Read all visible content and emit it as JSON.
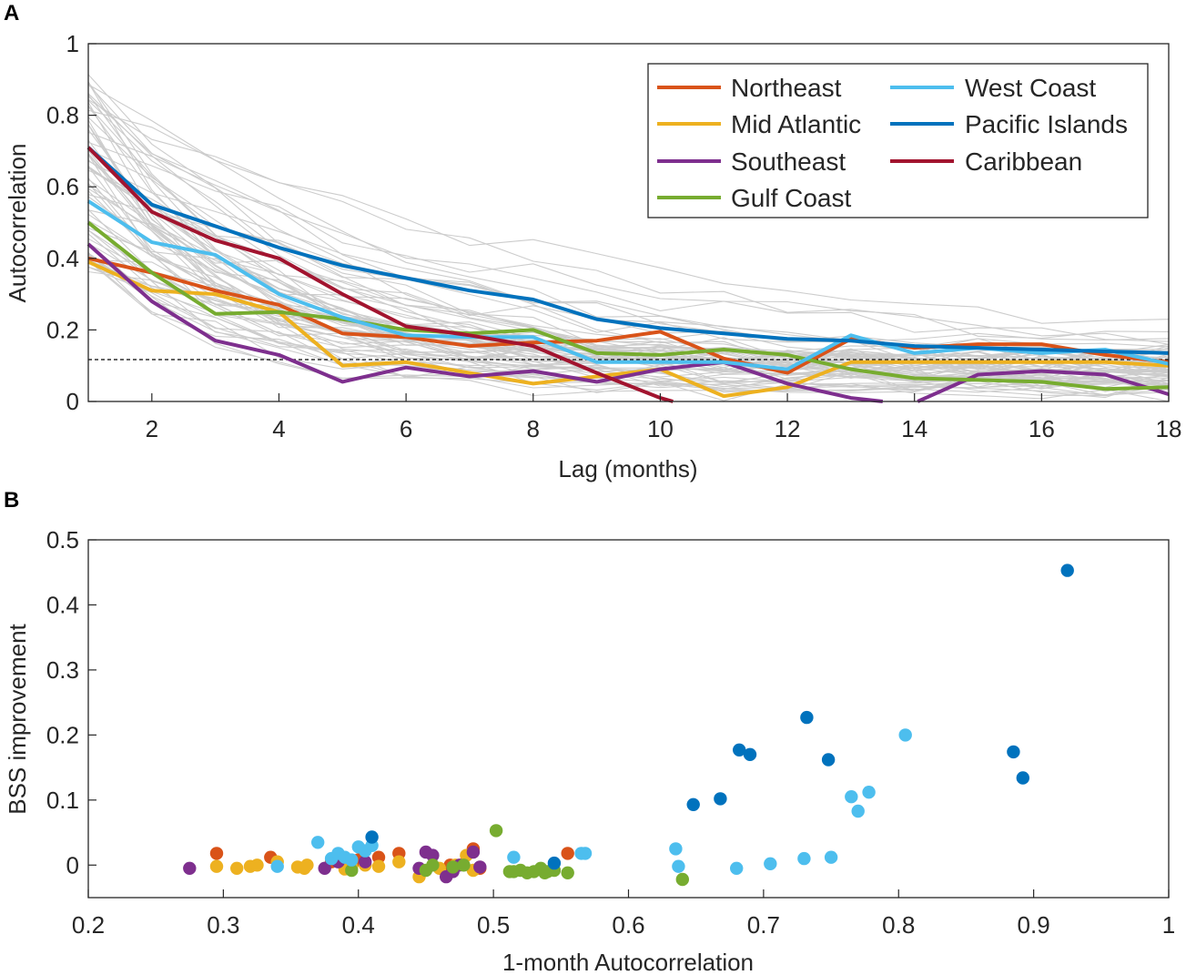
{
  "chart_data": [
    {
      "panel": "A",
      "type": "line",
      "xlabel": "Lag (months)",
      "ylabel": "Autocorrelation",
      "xlim": [
        1,
        18
      ],
      "ylim": [
        0,
        1
      ],
      "xticks": [
        2,
        4,
        6,
        8,
        10,
        12,
        14,
        16,
        18
      ],
      "yticks": [
        0,
        0.2,
        0.4,
        0.6,
        0.8,
        1
      ],
      "ytick_labels": [
        "0",
        "0.2",
        "0.4",
        "0.6",
        "0.8",
        "1"
      ],
      "significance_threshold": 0.117,
      "legend_position": "top-right",
      "background_series_color": "#cccccc",
      "series": [
        {
          "name": "Northeast",
          "color": "#d95319",
          "x": [
            1,
            2,
            3,
            4,
            5,
            6,
            7,
            8,
            9,
            10,
            11,
            12,
            13,
            14,
            15,
            16,
            17,
            18
          ],
          "y": [
            0.4,
            0.36,
            0.31,
            0.27,
            0.19,
            0.18,
            0.155,
            0.165,
            0.17,
            0.195,
            0.12,
            0.08,
            0.175,
            0.15,
            0.16,
            0.16,
            0.13,
            0.11
          ]
        },
        {
          "name": "Mid Atlantic",
          "color": "#edb120",
          "x": [
            1,
            2,
            3,
            4,
            5,
            6,
            7,
            8,
            9,
            10,
            11,
            12,
            13,
            14,
            15,
            16,
            17,
            18
          ],
          "y": [
            0.39,
            0.31,
            0.3,
            0.25,
            0.1,
            0.11,
            0.08,
            0.05,
            0.07,
            0.09,
            0.015,
            0.04,
            0.11,
            0.11,
            0.11,
            0.11,
            0.11,
            0.1
          ]
        },
        {
          "name": "Southeast",
          "color": "#7e2f8e",
          "x": [
            1,
            2,
            3,
            4,
            5,
            6,
            7,
            8,
            9,
            10,
            11,
            12,
            13,
            13.5,
            13.55,
            14,
            14.05,
            15,
            16,
            17,
            18
          ],
          "y": [
            0.44,
            0.28,
            0.17,
            0.13,
            0.055,
            0.095,
            0.07,
            0.085,
            0.055,
            0.09,
            0.11,
            0.05,
            0.01,
            0.0,
            null,
            null,
            0.0,
            0.075,
            0.085,
            0.075,
            0.02
          ]
        },
        {
          "name": "Gulf Coast",
          "color": "#77ac30",
          "x": [
            1,
            2,
            3,
            4,
            5,
            6,
            7,
            8,
            9,
            10,
            11,
            12,
            13,
            14,
            15,
            16,
            17,
            18
          ],
          "y": [
            0.5,
            0.36,
            0.245,
            0.25,
            0.23,
            0.2,
            0.19,
            0.2,
            0.135,
            0.13,
            0.145,
            0.13,
            0.09,
            0.065,
            0.06,
            0.055,
            0.035,
            0.04
          ]
        },
        {
          "name": "West Coast",
          "color": "#4dbeee",
          "x": [
            1,
            2,
            3,
            4,
            5,
            6,
            7,
            8,
            9,
            10,
            11,
            12,
            13,
            14,
            15,
            16,
            17,
            18
          ],
          "y": [
            0.56,
            0.445,
            0.41,
            0.3,
            0.235,
            0.185,
            0.18,
            0.18,
            0.11,
            0.11,
            0.11,
            0.09,
            0.185,
            0.135,
            0.15,
            0.135,
            0.145,
            0.105
          ]
        },
        {
          "name": "Pacific Islands",
          "color": "#0072bd",
          "x": [
            1,
            2,
            3,
            4,
            5,
            6,
            7,
            8,
            9,
            10,
            11,
            12,
            13,
            14,
            15,
            16,
            17,
            18
          ],
          "y": [
            0.71,
            0.55,
            0.49,
            0.43,
            0.38,
            0.345,
            0.31,
            0.285,
            0.23,
            0.205,
            0.19,
            0.175,
            0.17,
            0.155,
            0.15,
            0.145,
            0.14,
            0.135
          ]
        },
        {
          "name": "Caribbean",
          "color": "#a2142f",
          "x": [
            1,
            2,
            3,
            4,
            5,
            6,
            7,
            8,
            9,
            10,
            10.2
          ],
          "y": [
            0.71,
            0.53,
            0.45,
            0.4,
            0.3,
            0.21,
            0.185,
            0.155,
            0.08,
            0.01,
            0.0
          ]
        }
      ],
      "legend": {
        "Northeast": "Northeast",
        "Mid Atlantic": "Mid Atlantic",
        "Southeast": "Southeast",
        "Gulf Coast": "Gulf Coast",
        "West Coast": "West Coast",
        "Pacific Islands": "Pacific Islands",
        "Caribbean": "Caribbean"
      }
    },
    {
      "panel": "B",
      "type": "scatter",
      "xlabel": "1-month Autocorrelation",
      "ylabel": "BSS improvement",
      "xlim": [
        0.2,
        1.0
      ],
      "ylim": [
        -0.05,
        0.5
      ],
      "xticks": [
        0.2,
        0.3,
        0.4,
        0.5,
        0.6,
        0.7,
        0.8,
        0.9,
        1.0
      ],
      "xtick_labels": [
        "0.2",
        "0.3",
        "0.4",
        "0.5",
        "0.6",
        "0.7",
        "0.8",
        "0.9",
        "1"
      ],
      "yticks": [
        0,
        0.1,
        0.2,
        0.3,
        0.4,
        0.5
      ],
      "ytick_labels": [
        "0",
        "0.1",
        "0.2",
        "0.3",
        "0.4",
        "0.5"
      ],
      "series": [
        {
          "name": "Northeast",
          "color": "#d95319",
          "points": [
            [
              0.295,
              0.018
            ],
            [
              0.335,
              0.012
            ],
            [
              0.4,
              0.008
            ],
            [
              0.415,
              0.012
            ],
            [
              0.43,
              0.018
            ],
            [
              0.485,
              0.025
            ],
            [
              0.49,
              -0.005
            ],
            [
              0.555,
              0.018
            ],
            [
              0.38,
              0.005
            ],
            [
              0.468,
              0.0
            ]
          ]
        },
        {
          "name": "Mid Atlantic",
          "color": "#edb120",
          "points": [
            [
              0.295,
              -0.002
            ],
            [
              0.31,
              -0.005
            ],
            [
              0.32,
              -0.002
            ],
            [
              0.325,
              0.0
            ],
            [
              0.34,
              0.005
            ],
            [
              0.355,
              -0.003
            ],
            [
              0.36,
              -0.005
            ],
            [
              0.362,
              0.0
            ],
            [
              0.39,
              -0.006
            ],
            [
              0.395,
              -0.003
            ],
            [
              0.405,
              0.0
            ],
            [
              0.415,
              -0.002
            ],
            [
              0.43,
              0.005
            ],
            [
              0.445,
              -0.018
            ],
            [
              0.46,
              -0.005
            ],
            [
              0.48,
              0.015
            ],
            [
              0.485,
              -0.008
            ],
            [
              0.472,
              0.0
            ]
          ]
        },
        {
          "name": "Southeast",
          "color": "#7e2f8e",
          "points": [
            [
              0.275,
              -0.005
            ],
            [
              0.375,
              -0.005
            ],
            [
              0.385,
              0.005
            ],
            [
              0.405,
              0.005
            ],
            [
              0.445,
              -0.005
            ],
            [
              0.45,
              0.02
            ],
            [
              0.455,
              0.015
            ],
            [
              0.465,
              -0.018
            ],
            [
              0.47,
              -0.01
            ],
            [
              0.485,
              0.02
            ],
            [
              0.49,
              -0.003
            ],
            [
              0.475,
              0.0
            ]
          ]
        },
        {
          "name": "Gulf Coast",
          "color": "#77ac30",
          "points": [
            [
              0.395,
              -0.008
            ],
            [
              0.45,
              -0.008
            ],
            [
              0.455,
              0.0
            ],
            [
              0.47,
              -0.003
            ],
            [
              0.478,
              0.0
            ],
            [
              0.502,
              0.053
            ],
            [
              0.512,
              -0.01
            ],
            [
              0.515,
              -0.01
            ],
            [
              0.52,
              -0.008
            ],
            [
              0.525,
              -0.012
            ],
            [
              0.53,
              -0.01
            ],
            [
              0.535,
              -0.005
            ],
            [
              0.538,
              -0.012
            ],
            [
              0.54,
              -0.01
            ],
            [
              0.545,
              -0.008
            ],
            [
              0.555,
              -0.012
            ],
            [
              0.64,
              -0.022
            ]
          ]
        },
        {
          "name": "West Coast",
          "color": "#4dbeee",
          "points": [
            [
              0.34,
              -0.002
            ],
            [
              0.37,
              0.035
            ],
            [
              0.38,
              0.01
            ],
            [
              0.385,
              0.018
            ],
            [
              0.39,
              0.012
            ],
            [
              0.395,
              0.008
            ],
            [
              0.4,
              0.028
            ],
            [
              0.405,
              0.022
            ],
            [
              0.41,
              0.03
            ],
            [
              0.515,
              0.012
            ],
            [
              0.565,
              0.018
            ],
            [
              0.568,
              0.018
            ],
            [
              0.635,
              0.025
            ],
            [
              0.637,
              -0.002
            ],
            [
              0.68,
              -0.005
            ],
            [
              0.705,
              0.002
            ],
            [
              0.73,
              0.01
            ],
            [
              0.75,
              0.012
            ],
            [
              0.765,
              0.105
            ],
            [
              0.77,
              0.083
            ],
            [
              0.778,
              0.112
            ],
            [
              0.805,
              0.2
            ]
          ]
        },
        {
          "name": "Pacific Islands",
          "color": "#0072bd",
          "points": [
            [
              0.41,
              0.043
            ],
            [
              0.545,
              0.003
            ],
            [
              0.648,
              0.093
            ],
            [
              0.668,
              0.102
            ],
            [
              0.682,
              0.177
            ],
            [
              0.69,
              0.17
            ],
            [
              0.732,
              0.227
            ],
            [
              0.748,
              0.162
            ],
            [
              0.885,
              0.174
            ],
            [
              0.892,
              0.134
            ],
            [
              0.925,
              0.453
            ]
          ]
        }
      ]
    }
  ],
  "panels": {
    "a_label": "A",
    "b_label": "B"
  }
}
